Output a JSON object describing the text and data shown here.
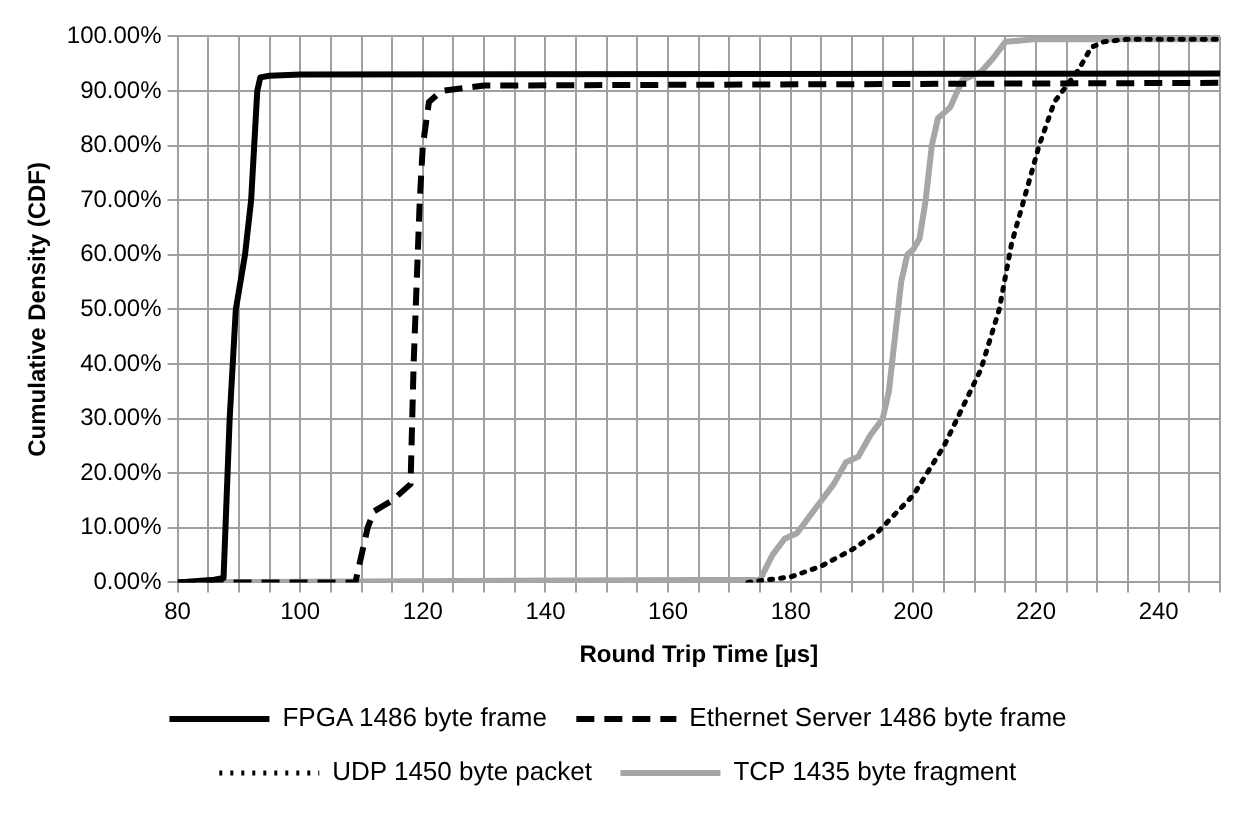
{
  "chart_data": {
    "type": "line",
    "xlabel": "Round Trip Time [µs]",
    "ylabel": "Cumulative Density (CDF)",
    "xlim": [
      80,
      250
    ],
    "xticks": [
      80,
      {
        "value": 85,
        "label": null
      },
      100,
      {
        "value": 90,
        "label": null
      },
      {
        "value": 95,
        "label": null
      },
      {
        "value": 105,
        "label": null
      },
      {
        "value": 110,
        "label": null
      },
      {
        "value": 115,
        "label": null
      },
      120,
      {
        "value": 125,
        "label": null
      },
      {
        "value": 130,
        "label": null
      },
      {
        "value": 135,
        "label": null
      },
      140,
      {
        "value": 145,
        "label": null
      },
      {
        "value": 150,
        "label": null
      },
      {
        "value": 155,
        "label": null
      },
      160,
      {
        "value": 165,
        "label": null
      },
      {
        "value": 170,
        "label": null
      },
      {
        "value": 175,
        "label": null
      },
      180,
      {
        "value": 185,
        "label": null
      },
      {
        "value": 190,
        "label": null
      },
      {
        "value": 195,
        "label": null
      },
      200,
      {
        "value": 205,
        "label": null
      },
      {
        "value": 210,
        "label": null
      },
      {
        "value": 215,
        "label": null
      },
      220,
      {
        "value": 225,
        "label": null
      },
      {
        "value": 230,
        "label": null
      },
      {
        "value": 235,
        "label": null
      },
      240,
      {
        "value": 245,
        "label": null
      },
      {
        "value": 250,
        "label": null
      }
    ],
    "ylim": [
      0,
      100
    ],
    "yticks": [
      {
        "value": 0,
        "label": "0.00%"
      },
      {
        "value": 10,
        "label": "10.00%"
      },
      {
        "value": 20,
        "label": "20.00%"
      },
      {
        "value": 30,
        "label": "30.00%"
      },
      {
        "value": 40,
        "label": "40.00%"
      },
      {
        "value": 50,
        "label": "50.00%"
      },
      {
        "value": 60,
        "label": "60.00%"
      },
      {
        "value": 70,
        "label": "70.00%"
      },
      {
        "value": 80,
        "label": "80.00%"
      },
      {
        "value": 90,
        "label": "90.00%"
      },
      {
        "value": 100,
        "label": "100.00%"
      }
    ],
    "grid": true,
    "legend": "bottom",
    "marker": "none",
    "series": [
      {
        "name": "FPGA 1486 byte frame",
        "color": "#000000",
        "line_style": "solid",
        "x": [
          80,
          86,
          87.5,
          88.5,
          89.5,
          91,
          92,
          93,
          93.5,
          95,
          100,
          250
        ],
        "values": [
          0,
          0.5,
          0.8,
          30,
          50,
          60,
          70,
          90,
          92.5,
          92.8,
          93,
          93.2
        ]
      },
      {
        "name": "Ethernet Server 1486 byte frame",
        "color": "#000000",
        "line_style": "dashed",
        "x": [
          80,
          109,
          111,
          112,
          115,
          118,
          118.5,
          119.5,
          120,
          121,
          123,
          130,
          250
        ],
        "values": [
          0,
          0,
          10,
          13,
          15,
          18,
          40,
          70,
          80,
          88,
          90,
          91,
          91.5
        ]
      },
      {
        "name": "UDP 1450 byte packet",
        "color": "#000000",
        "line_style": "dotted",
        "x": [
          173,
          175,
          180,
          185,
          190,
          194,
          200,
          205,
          211,
          214,
          216,
          218,
          220.5,
          223,
          225,
          227,
          229,
          231,
          235,
          250
        ],
        "values": [
          0,
          0.3,
          1,
          3,
          6,
          9,
          16,
          25,
          39,
          50,
          62,
          70,
          80,
          88,
          91,
          94,
          98,
          99,
          99.5,
          99.5
        ]
      },
      {
        "name": "TCP 1435 byte fragment",
        "color": "#a6a6a6",
        "line_style": "solid",
        "x": [
          80,
          175,
          177,
          179,
          181,
          183,
          185,
          187,
          189,
          191,
          193,
          195,
          196,
          197,
          198,
          199,
          200,
          201,
          202,
          203,
          204,
          206,
          208,
          211,
          213,
          215,
          220,
          250
        ],
        "values": [
          0,
          0.5,
          5,
          8,
          9,
          12,
          15,
          18,
          22,
          23,
          27,
          30,
          35,
          45,
          55,
          60,
          61,
          63,
          70,
          80,
          85,
          87,
          92,
          93.5,
          96,
          99,
          99.5,
          99.5
        ]
      }
    ]
  }
}
